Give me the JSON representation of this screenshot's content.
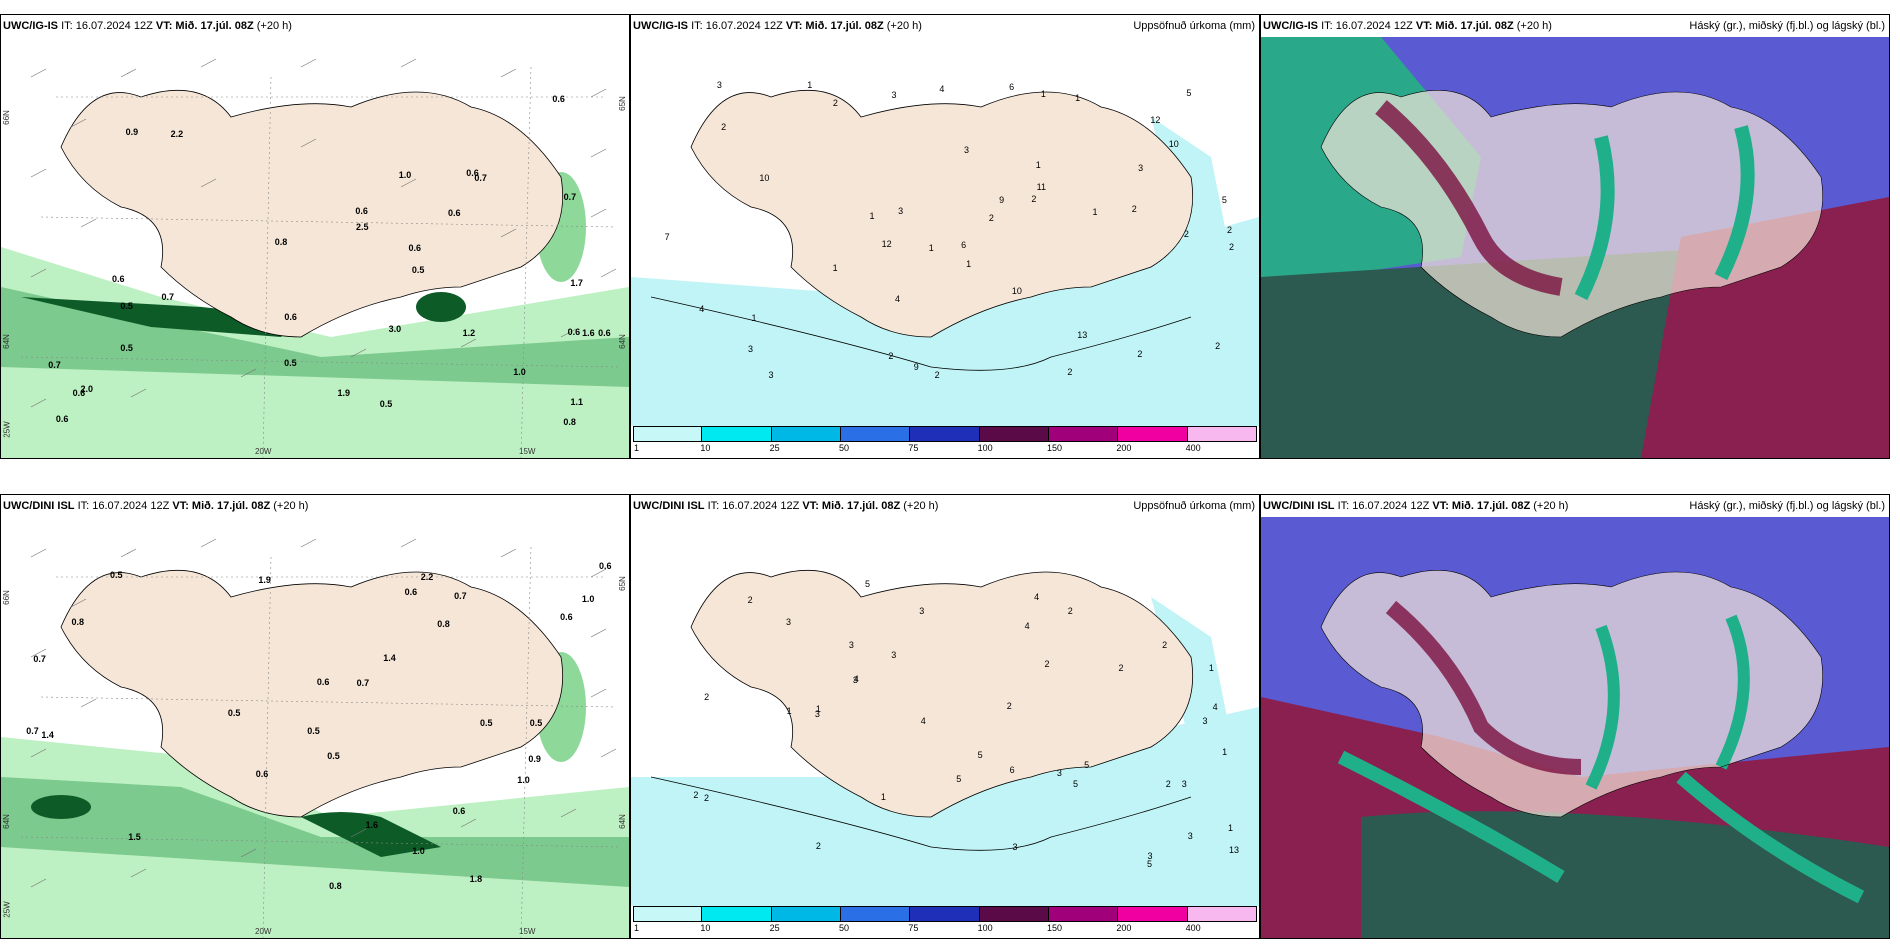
{
  "panels": [
    {
      "model": "UWC/IG-IS",
      "it": "IT: 16.07.2024 12Z",
      "vt_prefix": "VT:",
      "vt": "Mið. 17.júl. 08Z",
      "lead": "(+20 h)",
      "right": "",
      "kind": "wind"
    },
    {
      "model": "UWC/IG-IS",
      "it": "IT: 16.07.2024 12Z",
      "vt_prefix": "VT:",
      "vt": "Mið. 17.júl. 08Z",
      "lead": "(+20 h)",
      "right": "Uppsöfnuð úrkoma (mm)",
      "kind": "precip"
    },
    {
      "model": "UWC/IG-IS",
      "it": "IT: 16.07.2024 12Z",
      "vt_prefix": "VT:",
      "vt": "Mið. 17.júl. 08Z",
      "lead": "(+20 h)",
      "right": "Háský (gr.), miðský (fj.bl.) og lágský (bl.)",
      "kind": "cloud"
    },
    {
      "model": "UWC/DINI ISL",
      "it": "IT: 16.07.2024 12Z",
      "vt_prefix": "VT:",
      "vt": "Mið. 17.júl. 08Z",
      "lead": "(+20 h)",
      "right": "",
      "kind": "wind"
    },
    {
      "model": "UWC/DINI ISL",
      "it": "IT: 16.07.2024 12Z",
      "vt_prefix": "VT:",
      "vt": "Mið. 17.júl. 08Z",
      "lead": "(+20 h)",
      "right": "Uppsöfnuð úrkoma (mm)",
      "kind": "precip"
    },
    {
      "model": "UWC/DINI ISL",
      "it": "IT: 16.07.2024 12Z",
      "vt_prefix": "VT:",
      "vt": "Mið. 17.júl. 08Z",
      "lead": "(+20 h)",
      "right": "Háský (gr.), miðský (fj.bl.) og lágský (bl.)",
      "kind": "cloud"
    }
  ],
  "axes": {
    "lon1": "20W",
    "lon2": "15W",
    "lat_left_top": "66N",
    "lat_left_mid": "64N",
    "lat_left_bot": "25W",
    "lat_right_top": "65N",
    "lat_right_mid": "64N"
  },
  "colorbar": {
    "labels": [
      "1",
      "10",
      "25",
      "50",
      "75",
      "100",
      "150",
      "200",
      "400"
    ],
    "colors": [
      "#c8f7f7",
      "#00e8f0",
      "#00b8e6",
      "#2b6fe6",
      "#1f2fb8",
      "#5a0a46",
      "#a0007a",
      "#f000a0",
      "#f7b8f0"
    ]
  },
  "colors": {
    "land": "#f5e6d8",
    "precip_light": "#c0f4f6",
    "wind_green_light": "#b8f0c0",
    "wind_green_mid": "#6cc080",
    "wind_green_dark": "#0d5c28",
    "cloud_blue": "#5a5ad2",
    "cloud_teal": "#1fb08a",
    "cloud_dark": "#2d5a50",
    "cloud_wine": "#8a2050"
  },
  "wind_values_top": [
    "0.6",
    "0.6",
    "0.7",
    "0.6",
    "0.6",
    "0.5",
    "0.6",
    "0.5",
    "0.8",
    "0.5",
    "0.6",
    "0.6",
    "0.5",
    "0.6",
    "0.6",
    "0.7",
    "1.0",
    "1.0",
    "2.5",
    "0.6",
    "1.6",
    "2.0",
    "2.2",
    "3.0",
    "1.7",
    "1.9",
    "0.9",
    "0.5",
    "0.8",
    "0.7",
    "1.1",
    "1.2",
    "0.7",
    "0.6"
  ],
  "wind_values_bottom": [
    "0.7",
    "0.6",
    "0.5",
    "0.6",
    "0.5",
    "0.6",
    "0.6",
    "0.8",
    "1.4",
    "1.6",
    "0.7",
    "0.7",
    "0.5",
    "0.6",
    "1.0",
    "0.6",
    "0.5",
    "0.5",
    "0.8",
    "0.7",
    "0.8",
    "1.0",
    "1.9",
    "1.0",
    "1.4",
    "2.2",
    "0.9",
    "0.5",
    "1.5",
    "1.8"
  ],
  "precip_values_top": [
    "2",
    "1",
    "2",
    "1",
    "1",
    "2",
    "2",
    "1",
    "1",
    "1",
    "2",
    "2",
    "1",
    "1",
    "3",
    "6",
    "1",
    "1",
    "3",
    "2",
    "3",
    "3",
    "3",
    "7",
    "2",
    "2",
    "4",
    "4",
    "5",
    "10",
    "3",
    "2",
    "4",
    "5",
    "9",
    "6",
    "11",
    "10",
    "12",
    "12",
    "10",
    "13",
    "9",
    "2",
    "2",
    "3",
    "2"
  ],
  "precip_values_bottom": [
    "1",
    "2",
    "1",
    "1",
    "1",
    "2",
    "3",
    "3",
    "3",
    "4",
    "5",
    "2",
    "3",
    "3",
    "3",
    "3",
    "2",
    "1",
    "2",
    "2",
    "2",
    "4",
    "5",
    "3",
    "2",
    "1",
    "3",
    "2",
    "5",
    "3",
    "4",
    "13",
    "5",
    "3",
    "6",
    "2",
    "4",
    "5",
    "5",
    "4",
    "2",
    "3"
  ]
}
